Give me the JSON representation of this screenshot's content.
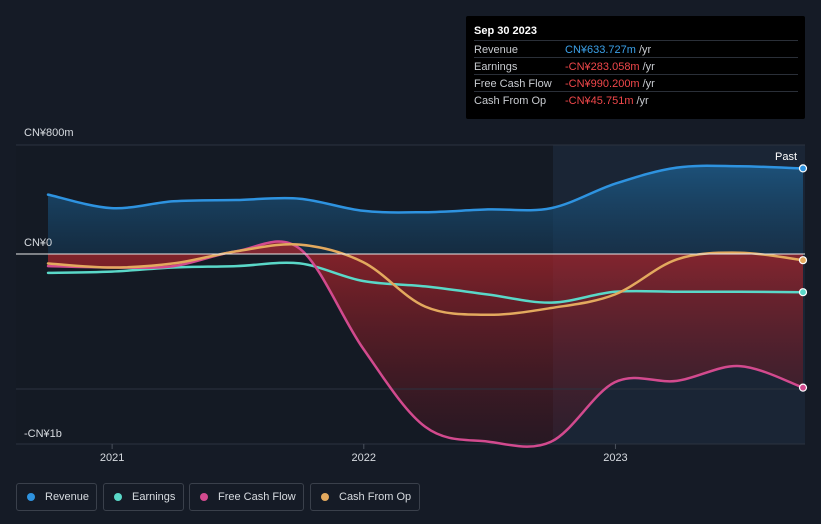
{
  "tooltip": {
    "date": "Sep 30 2023",
    "rows": [
      {
        "label": "Revenue",
        "value": "CN¥633.727m",
        "unit": "/yr",
        "color": "#3ba0e8"
      },
      {
        "label": "Earnings",
        "value": "-CN¥283.058m",
        "unit": "/yr",
        "color": "#f0474a"
      },
      {
        "label": "Free Cash Flow",
        "value": "-CN¥990.200m",
        "unit": "/yr",
        "color": "#f0474a"
      },
      {
        "label": "Cash From Op",
        "value": "-CN¥45.751m",
        "unit": "/yr",
        "color": "#f0474a"
      }
    ]
  },
  "colors": {
    "revenue": "#2e93e0",
    "earnings": "#5ad8c8",
    "fcf": "#d24a8e",
    "cfo": "#e3a95e",
    "background": "#151b26"
  },
  "chart_data": {
    "type": "line",
    "y_unit": "CN¥",
    "ylim": [
      -1400,
      800
    ],
    "y_tick_labels": [
      "CN¥800m",
      "CN¥0",
      "-CN¥1b"
    ],
    "x_tick_labels": [
      "2021",
      "2022",
      "2023"
    ],
    "past_label": "Past",
    "x": [
      "2020-09-30",
      "2020-12-31",
      "2021-03-31",
      "2021-06-30",
      "2021-09-30",
      "2021-12-31",
      "2022-03-31",
      "2022-06-30",
      "2022-09-30",
      "2022-12-31",
      "2023-03-31",
      "2023-06-30",
      "2023-09-30"
    ],
    "series": [
      {
        "name": "Revenue",
        "key": "revenue",
        "values": [
          440,
          340,
          390,
          400,
          410,
          320,
          310,
          330,
          340,
          520,
          640,
          650,
          634
        ]
      },
      {
        "name": "Earnings",
        "key": "earnings",
        "values": [
          -140,
          -130,
          -100,
          -90,
          -70,
          -200,
          -240,
          -300,
          -360,
          -280,
          -280,
          -280,
          -283
        ]
      },
      {
        "name": "Free Cash Flow",
        "key": "fcf",
        "values": [
          -90,
          -100,
          -90,
          20,
          40,
          -700,
          -1280,
          -1390,
          -1390,
          -950,
          -940,
          -830,
          -990
        ]
      },
      {
        "name": "Cash From Op",
        "key": "cfo",
        "values": [
          -70,
          -100,
          -70,
          20,
          70,
          -60,
          -390,
          -450,
          -400,
          -300,
          -40,
          10,
          -46
        ]
      }
    ]
  },
  "legend": [
    {
      "label": "Revenue",
      "key": "revenue"
    },
    {
      "label": "Earnings",
      "key": "earnings"
    },
    {
      "label": "Free Cash Flow",
      "key": "fcf"
    },
    {
      "label": "Cash From Op",
      "key": "cfo"
    }
  ]
}
